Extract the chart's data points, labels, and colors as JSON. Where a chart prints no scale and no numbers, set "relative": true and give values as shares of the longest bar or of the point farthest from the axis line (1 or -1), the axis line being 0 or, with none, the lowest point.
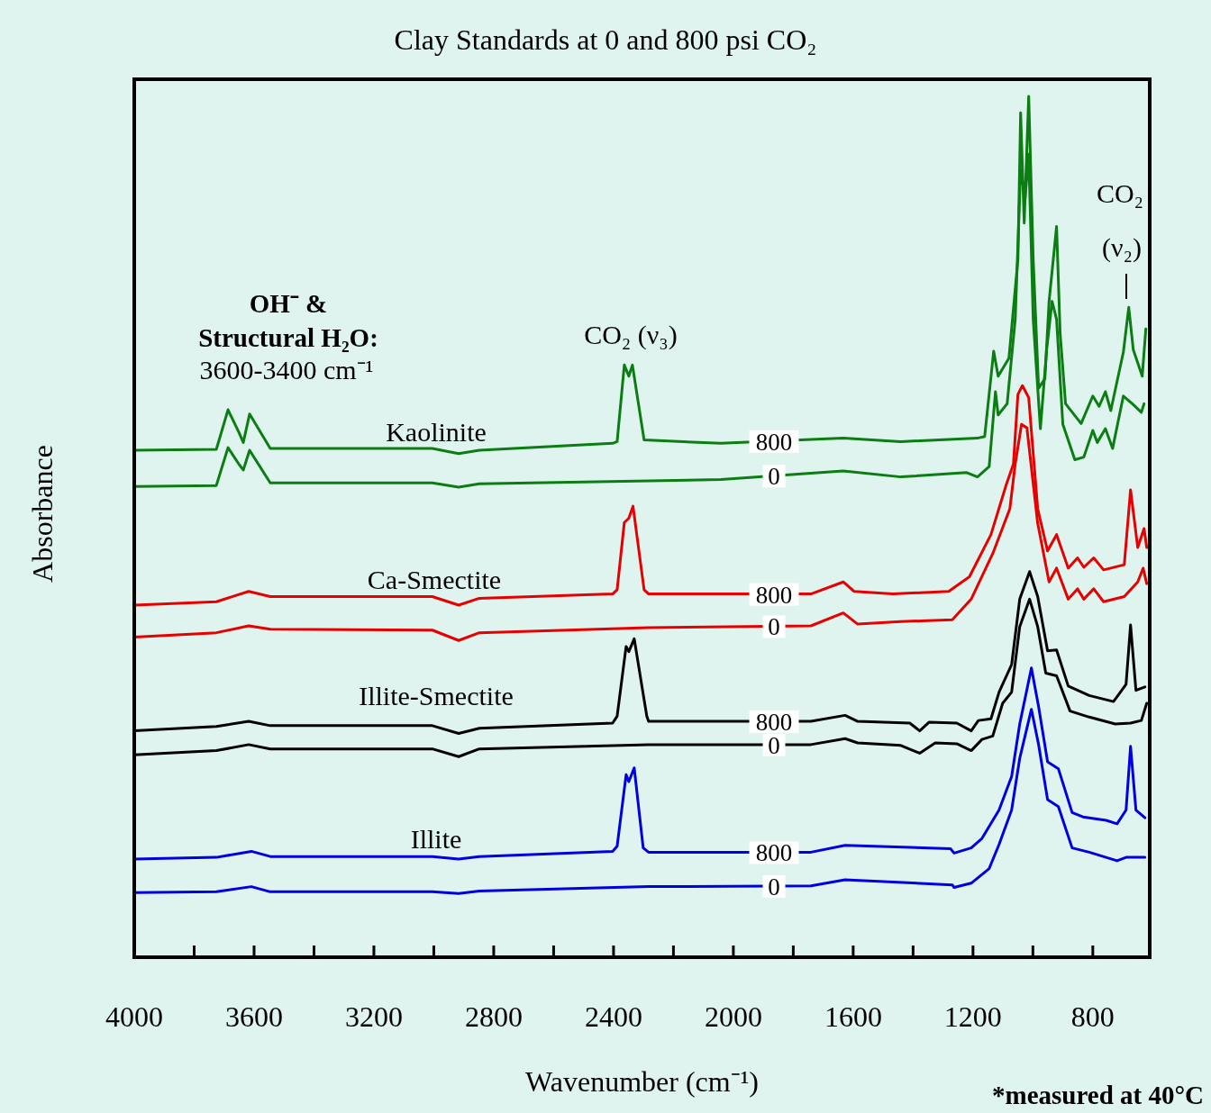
{
  "chart_data": {
    "type": "line",
    "title": "Clay Standards at 0 and 800 psi CO₂",
    "xlabel": "Wavenumber (cm⁻¹)",
    "ylabel": "Absorbance",
    "relative": true,
    "legend": false,
    "grid": false,
    "marker": "none",
    "line_style": "solid",
    "xlim": [
      4000,
      610
    ],
    "xticks": [
      4000,
      {
        "value": 3800,
        "label": null
      },
      3600,
      {
        "value": 3400,
        "label": null
      },
      3200,
      {
        "value": 3000,
        "label": null
      },
      2800,
      {
        "value": 2600,
        "label": null
      },
      2400,
      {
        "value": 2200,
        "label": null
      },
      2000,
      {
        "value": 1800,
        "label": null
      },
      1600,
      {
        "value": 1400,
        "label": null
      },
      1200,
      {
        "value": 1000,
        "label": null
      },
      800
    ],
    "annotations": [
      "OH⁻ &",
      "Structural H₂O:",
      "3600-3400 cm⁻¹",
      "CO₂ (ν₃)",
      "CO₂",
      "(ν₂)",
      "Kaolinite",
      "Ca-Smectite",
      "Illite-Smectite",
      "Illite",
      "*measured at 40°C"
    ],
    "series": [
      {
        "name": "800",
        "color": "#0b7d12",
        "x": [
          4000,
          3726,
          3687,
          3651,
          3636,
          3615,
          3546,
          3005,
          2917,
          2848,
          2403,
          2388,
          2364,
          2349,
          2337,
          2298,
          2042,
          1633,
          1441,
          1185,
          1161,
          1131,
          1116,
          1080,
          1050,
          1041,
          1029,
          1014,
          999,
          981,
          960,
          946,
          921,
          909,
          891,
          839,
          800,
          779,
          758,
          740,
          698,
          680,
          665,
          635,
          623
        ],
        "values": [
          0.589,
          0.59,
          0.636,
          0.61,
          0.598,
          0.631,
          0.591,
          0.591,
          0.585,
          0.589,
          0.597,
          0.599,
          0.688,
          0.675,
          0.688,
          0.601,
          0.597,
          0.603,
          0.599,
          0.603,
          0.605,
          0.704,
          0.675,
          0.696,
          0.811,
          0.981,
          0.853,
          1.0,
          0.811,
          0.661,
          0.672,
          0.762,
          0.849,
          0.724,
          0.643,
          0.62,
          0.652,
          0.64,
          0.657,
          0.635,
          0.703,
          0.755,
          0.706,
          0.675,
          0.73
        ]
      },
      {
        "name": "0",
        "color": "#0b7d12",
        "x": [
          4000,
          3726,
          3687,
          3651,
          3636,
          3615,
          3546,
          3005,
          2917,
          2848,
          2042,
          1633,
          1441,
          1221,
          1185,
          1146,
          1125,
          1116,
          1086,
          1059,
          1041,
          1026,
          1014,
          999,
          975,
          954,
          936,
          921,
          900,
          860,
          830,
          800,
          785,
          758,
          734,
          698,
          668,
          638,
          629
        ],
        "values": [
          0.547,
          0.548,
          0.592,
          0.573,
          0.566,
          0.589,
          0.551,
          0.551,
          0.546,
          0.55,
          0.555,
          0.565,
          0.558,
          0.563,
          0.558,
          0.57,
          0.657,
          0.63,
          0.643,
          0.741,
          0.915,
          0.881,
          0.933,
          0.741,
          0.614,
          0.706,
          0.762,
          0.741,
          0.619,
          0.578,
          0.581,
          0.612,
          0.598,
          0.614,
          0.591,
          0.652,
          0.643,
          0.633,
          0.643
        ]
      },
      {
        "name": "800",
        "color": "#e60000",
        "x": [
          4000,
          3726,
          3618,
          3546,
          3005,
          2917,
          2848,
          2403,
          2388,
          2364,
          2349,
          2335,
          2298,
          2283,
          1741,
          1633,
          1597,
          1468,
          1281,
          1212,
          1140,
          1089,
          1065,
          1050,
          1035,
          1014,
          984,
          951,
          921,
          882,
          851,
          830,
          797,
          764,
          695,
          674,
          650,
          629,
          620
        ],
        "values": [
          0.409,
          0.413,
          0.425,
          0.419,
          0.419,
          0.409,
          0.417,
          0.422,
          0.427,
          0.505,
          0.51,
          0.524,
          0.427,
          0.422,
          0.422,
          0.436,
          0.425,
          0.422,
          0.425,
          0.442,
          0.491,
          0.549,
          0.573,
          0.654,
          0.664,
          0.65,
          0.521,
          0.472,
          0.491,
          0.452,
          0.464,
          0.453,
          0.464,
          0.45,
          0.456,
          0.543,
          0.476,
          0.498,
          0.476
        ]
      },
      {
        "name": "0",
        "color": "#e60000",
        "x": [
          4000,
          3726,
          3618,
          3546,
          3005,
          2917,
          2848,
          2283,
          1741,
          1633,
          1585,
          1441,
          1269,
          1206,
          1134,
          1077,
          1059,
          1038,
          1020,
          984,
          946,
          921,
          882,
          851,
          830,
          797,
          764,
          695,
          650,
          632,
          620
        ],
        "values": [
          0.372,
          0.377,
          0.385,
          0.381,
          0.38,
          0.368,
          0.377,
          0.383,
          0.385,
          0.4,
          0.387,
          0.39,
          0.392,
          0.416,
          0.469,
          0.521,
          0.573,
          0.619,
          0.615,
          0.504,
          0.436,
          0.452,
          0.416,
          0.428,
          0.416,
          0.428,
          0.413,
          0.419,
          0.436,
          0.452,
          0.434
        ]
      },
      {
        "name": "800",
        "color": "#000000",
        "x": [
          4000,
          3726,
          3618,
          3546,
          3005,
          2917,
          2848,
          2403,
          2388,
          2358,
          2349,
          2331,
          2289,
          2283,
          1741,
          1627,
          1585,
          1411,
          1378,
          1347,
          1254,
          1206,
          1182,
          1140,
          1113,
          1071,
          1044,
          1011,
          984,
          951,
          921,
          882,
          812,
          731,
          689,
          674,
          656,
          626
        ],
        "values": [
          0.263,
          0.268,
          0.274,
          0.269,
          0.269,
          0.26,
          0.266,
          0.272,
          0.28,
          0.361,
          0.355,
          0.37,
          0.28,
          0.274,
          0.274,
          0.281,
          0.274,
          0.272,
          0.263,
          0.273,
          0.272,
          0.263,
          0.275,
          0.277,
          0.308,
          0.34,
          0.416,
          0.448,
          0.419,
          0.356,
          0.357,
          0.315,
          0.304,
          0.297,
          0.317,
          0.386,
          0.31,
          0.314
        ]
      },
      {
        "name": "0",
        "color": "#000000",
        "x": [
          4000,
          3726,
          3618,
          3546,
          3005,
          2917,
          2848,
          2283,
          1741,
          1627,
          1585,
          1441,
          1378,
          1326,
          1254,
          1206,
          1170,
          1134,
          1101,
          1071,
          1044,
          1011,
          984,
          957,
          921,
          876,
          812,
          725,
          674,
          638,
          620
        ],
        "values": [
          0.235,
          0.24,
          0.247,
          0.242,
          0.242,
          0.233,
          0.242,
          0.247,
          0.247,
          0.254,
          0.249,
          0.246,
          0.237,
          0.249,
          0.248,
          0.24,
          0.253,
          0.257,
          0.295,
          0.308,
          0.384,
          0.416,
          0.384,
          0.33,
          0.327,
          0.286,
          0.279,
          0.271,
          0.272,
          0.275,
          0.295
        ]
      },
      {
        "name": "800",
        "color": "#0000e0",
        "x": [
          4000,
          3726,
          3609,
          3546,
          3005,
          2917,
          2848,
          2403,
          2388,
          2358,
          2349,
          2331,
          2301,
          2283,
          1741,
          1627,
          1275,
          1263,
          1206,
          1170,
          1113,
          1071,
          1044,
          1005,
          981,
          951,
          915,
          869,
          833,
          755,
          719,
          689,
          674,
          656,
          626
        ],
        "values": [
          0.114,
          0.116,
          0.123,
          0.117,
          0.117,
          0.114,
          0.117,
          0.123,
          0.129,
          0.212,
          0.204,
          0.22,
          0.127,
          0.122,
          0.122,
          0.13,
          0.126,
          0.121,
          0.127,
          0.138,
          0.171,
          0.21,
          0.271,
          0.336,
          0.291,
          0.227,
          0.219,
          0.168,
          0.163,
          0.159,
          0.155,
          0.171,
          0.245,
          0.171,
          0.162
        ]
      },
      {
        "name": "0",
        "color": "#0000e0",
        "x": [
          4000,
          3726,
          3609,
          3546,
          3005,
          2917,
          2848,
          2283,
          1741,
          1627,
          1269,
          1263,
          1206,
          1146,
          1113,
          1071,
          1044,
          1005,
          981,
          951,
          915,
          869,
          812,
          719,
          689,
          626
        ],
        "values": [
          0.075,
          0.076,
          0.082,
          0.076,
          0.076,
          0.074,
          0.077,
          0.082,
          0.083,
          0.09,
          0.084,
          0.081,
          0.086,
          0.103,
          0.131,
          0.171,
          0.231,
          0.288,
          0.247,
          0.183,
          0.175,
          0.127,
          0.122,
          0.112,
          0.116,
          0.116
        ]
      }
    ]
  }
}
